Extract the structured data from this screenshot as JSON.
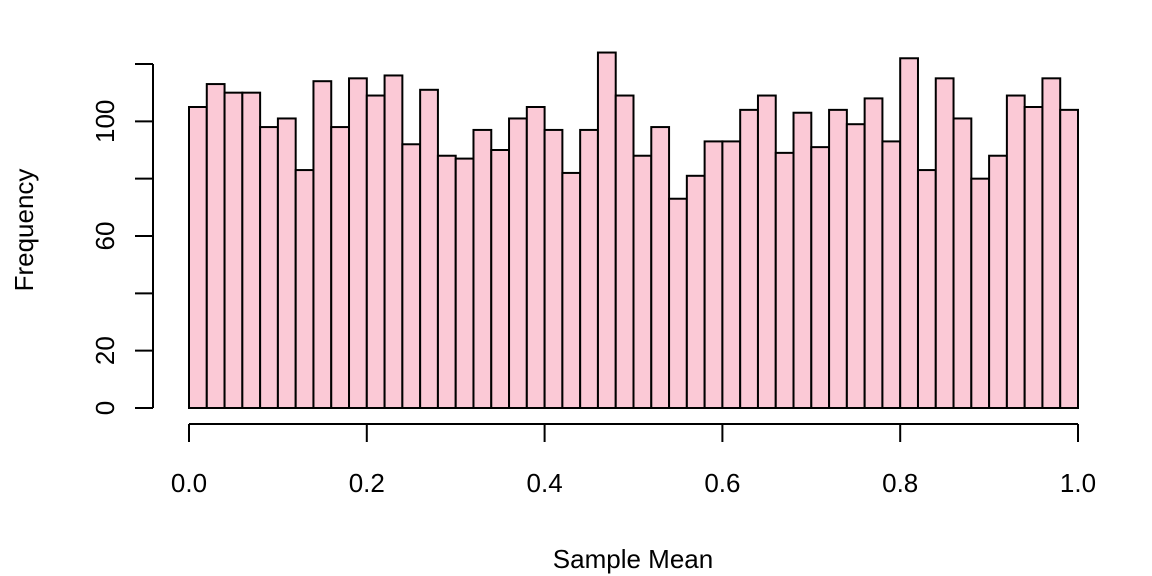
{
  "chart_data": {
    "type": "bar",
    "title": "",
    "xlabel": "Sample Mean",
    "ylabel": "Frequency",
    "xlim": [
      0,
      1
    ],
    "ylim": [
      0,
      120
    ],
    "bin_width": 0.02,
    "bins_start": 0,
    "x_ticks": [
      0,
      0.2,
      0.4,
      0.6,
      0.8,
      1
    ],
    "x_tick_labels": [
      "0.0",
      "0.2",
      "0.4",
      "0.6",
      "0.8",
      "1.0"
    ],
    "y_ticks": [
      0,
      20,
      40,
      60,
      80,
      100,
      120
    ],
    "y_tick_labels": [
      "0",
      "20",
      "",
      "60",
      "",
      "100",
      ""
    ],
    "bar_color": "#fbc9d6",
    "edge_color": "#000000",
    "values": [
      105,
      113,
      110,
      110,
      98,
      101,
      83,
      114,
      98,
      115,
      109,
      116,
      92,
      111,
      88,
      87,
      97,
      90,
      101,
      105,
      97,
      82,
      97,
      124,
      109,
      88,
      98,
      73,
      81,
      93,
      93,
      104,
      109,
      89,
      103,
      91,
      104,
      99,
      108,
      93,
      122,
      83,
      115,
      101,
      80,
      88,
      109,
      105,
      115,
      104
    ]
  }
}
